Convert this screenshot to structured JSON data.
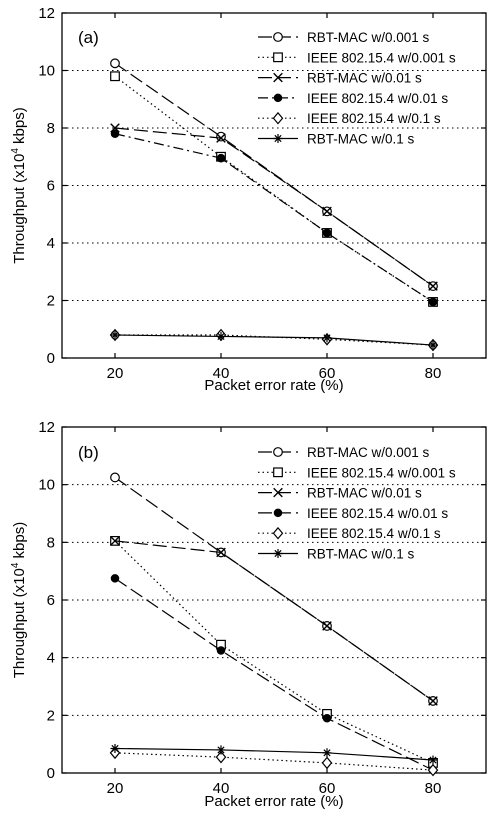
{
  "figure": {
    "panels": [
      {
        "label": "(a)",
        "ylabel_main": "Throughput (x10",
        "ylabel_exp": "4",
        "ylabel_unit": " kbps)",
        "xlabel": "Packet error rate (%)"
      },
      {
        "label": "(b)",
        "ylabel_main": "Throughput (x10",
        "ylabel_exp": "4",
        "ylabel_unit": " kbps)",
        "xlabel": "Packet error rate (%)"
      }
    ]
  },
  "chart_data": [
    {
      "type": "line",
      "panel_label": "(a)",
      "xlabel": "Packet error rate (%)",
      "ylabel": "Throughput (x10^4 kbps)",
      "x": [
        20,
        40,
        60,
        80
      ],
      "x_ticks": [
        20,
        40,
        60,
        80
      ],
      "y_ticks": [
        0,
        2,
        4,
        6,
        8,
        10,
        12
      ],
      "xlim": [
        10,
        90
      ],
      "ylim": [
        0,
        12
      ],
      "grid": "horizontal dotted",
      "legend_position": "top-right",
      "series": [
        {
          "name": "RBT-MAC w/0.001 s",
          "values": [
            10.25,
            7.7,
            5.1,
            2.5
          ],
          "marker": "circle",
          "line": "long-dash"
        },
        {
          "name": "IEEE 802.15.4 w/0.001 s",
          "values": [
            9.8,
            7.0,
            4.35,
            1.95
          ],
          "marker": "square",
          "line": "dotted"
        },
        {
          "name": "RBT-MAC w/0.01 s",
          "values": [
            8.0,
            7.65,
            5.1,
            2.5
          ],
          "marker": "x",
          "line": "long-dash"
        },
        {
          "name": "IEEE 802.15.4 w/0.01 s",
          "values": [
            7.8,
            6.95,
            4.35,
            1.95
          ],
          "marker": "filled-circle",
          "line": "dash-dot"
        },
        {
          "name": "IEEE 802.15.4 w/0.1 s",
          "values": [
            0.8,
            0.8,
            0.65,
            0.45
          ],
          "marker": "diamond",
          "line": "dotted"
        },
        {
          "name": "RBT-MAC w/0.1 s",
          "values": [
            0.8,
            0.75,
            0.7,
            0.45
          ],
          "marker": "star",
          "line": "solid"
        }
      ]
    },
    {
      "type": "line",
      "panel_label": "(b)",
      "xlabel": "Packet error rate (%)",
      "ylabel": "Throughput (x10^4 kbps)",
      "x": [
        20,
        40,
        60,
        80
      ],
      "x_ticks": [
        20,
        40,
        60,
        80
      ],
      "y_ticks": [
        0,
        2,
        4,
        6,
        8,
        10,
        12
      ],
      "xlim": [
        10,
        90
      ],
      "ylim": [
        0,
        12
      ],
      "grid": "horizontal dotted",
      "legend_position": "top-right",
      "series": [
        {
          "name": "RBT-MAC w/0.001 s",
          "values": [
            10.25,
            7.65,
            5.1,
            2.5
          ],
          "marker": "circle",
          "line": "long-dash"
        },
        {
          "name": "IEEE 802.15.4 w/0.001 s",
          "values": [
            8.05,
            4.45,
            2.05,
            0.35
          ],
          "marker": "square",
          "line": "dotted"
        },
        {
          "name": "RBT-MAC w/0.01 s",
          "values": [
            8.05,
            7.65,
            5.1,
            2.5
          ],
          "marker": "x",
          "line": "long-dash"
        },
        {
          "name": "IEEE 802.15.4 w/0.01 s",
          "values": [
            6.75,
            4.25,
            1.9,
            0.1
          ],
          "marker": "filled-circle",
          "line": "long-dash"
        },
        {
          "name": "IEEE 802.15.4 w/0.1 s",
          "values": [
            0.7,
            0.55,
            0.35,
            0.1
          ],
          "marker": "diamond",
          "line": "dotted"
        },
        {
          "name": "RBT-MAC w/0.1 s",
          "values": [
            0.85,
            0.8,
            0.7,
            0.45
          ],
          "marker": "star",
          "line": "solid"
        }
      ]
    }
  ]
}
